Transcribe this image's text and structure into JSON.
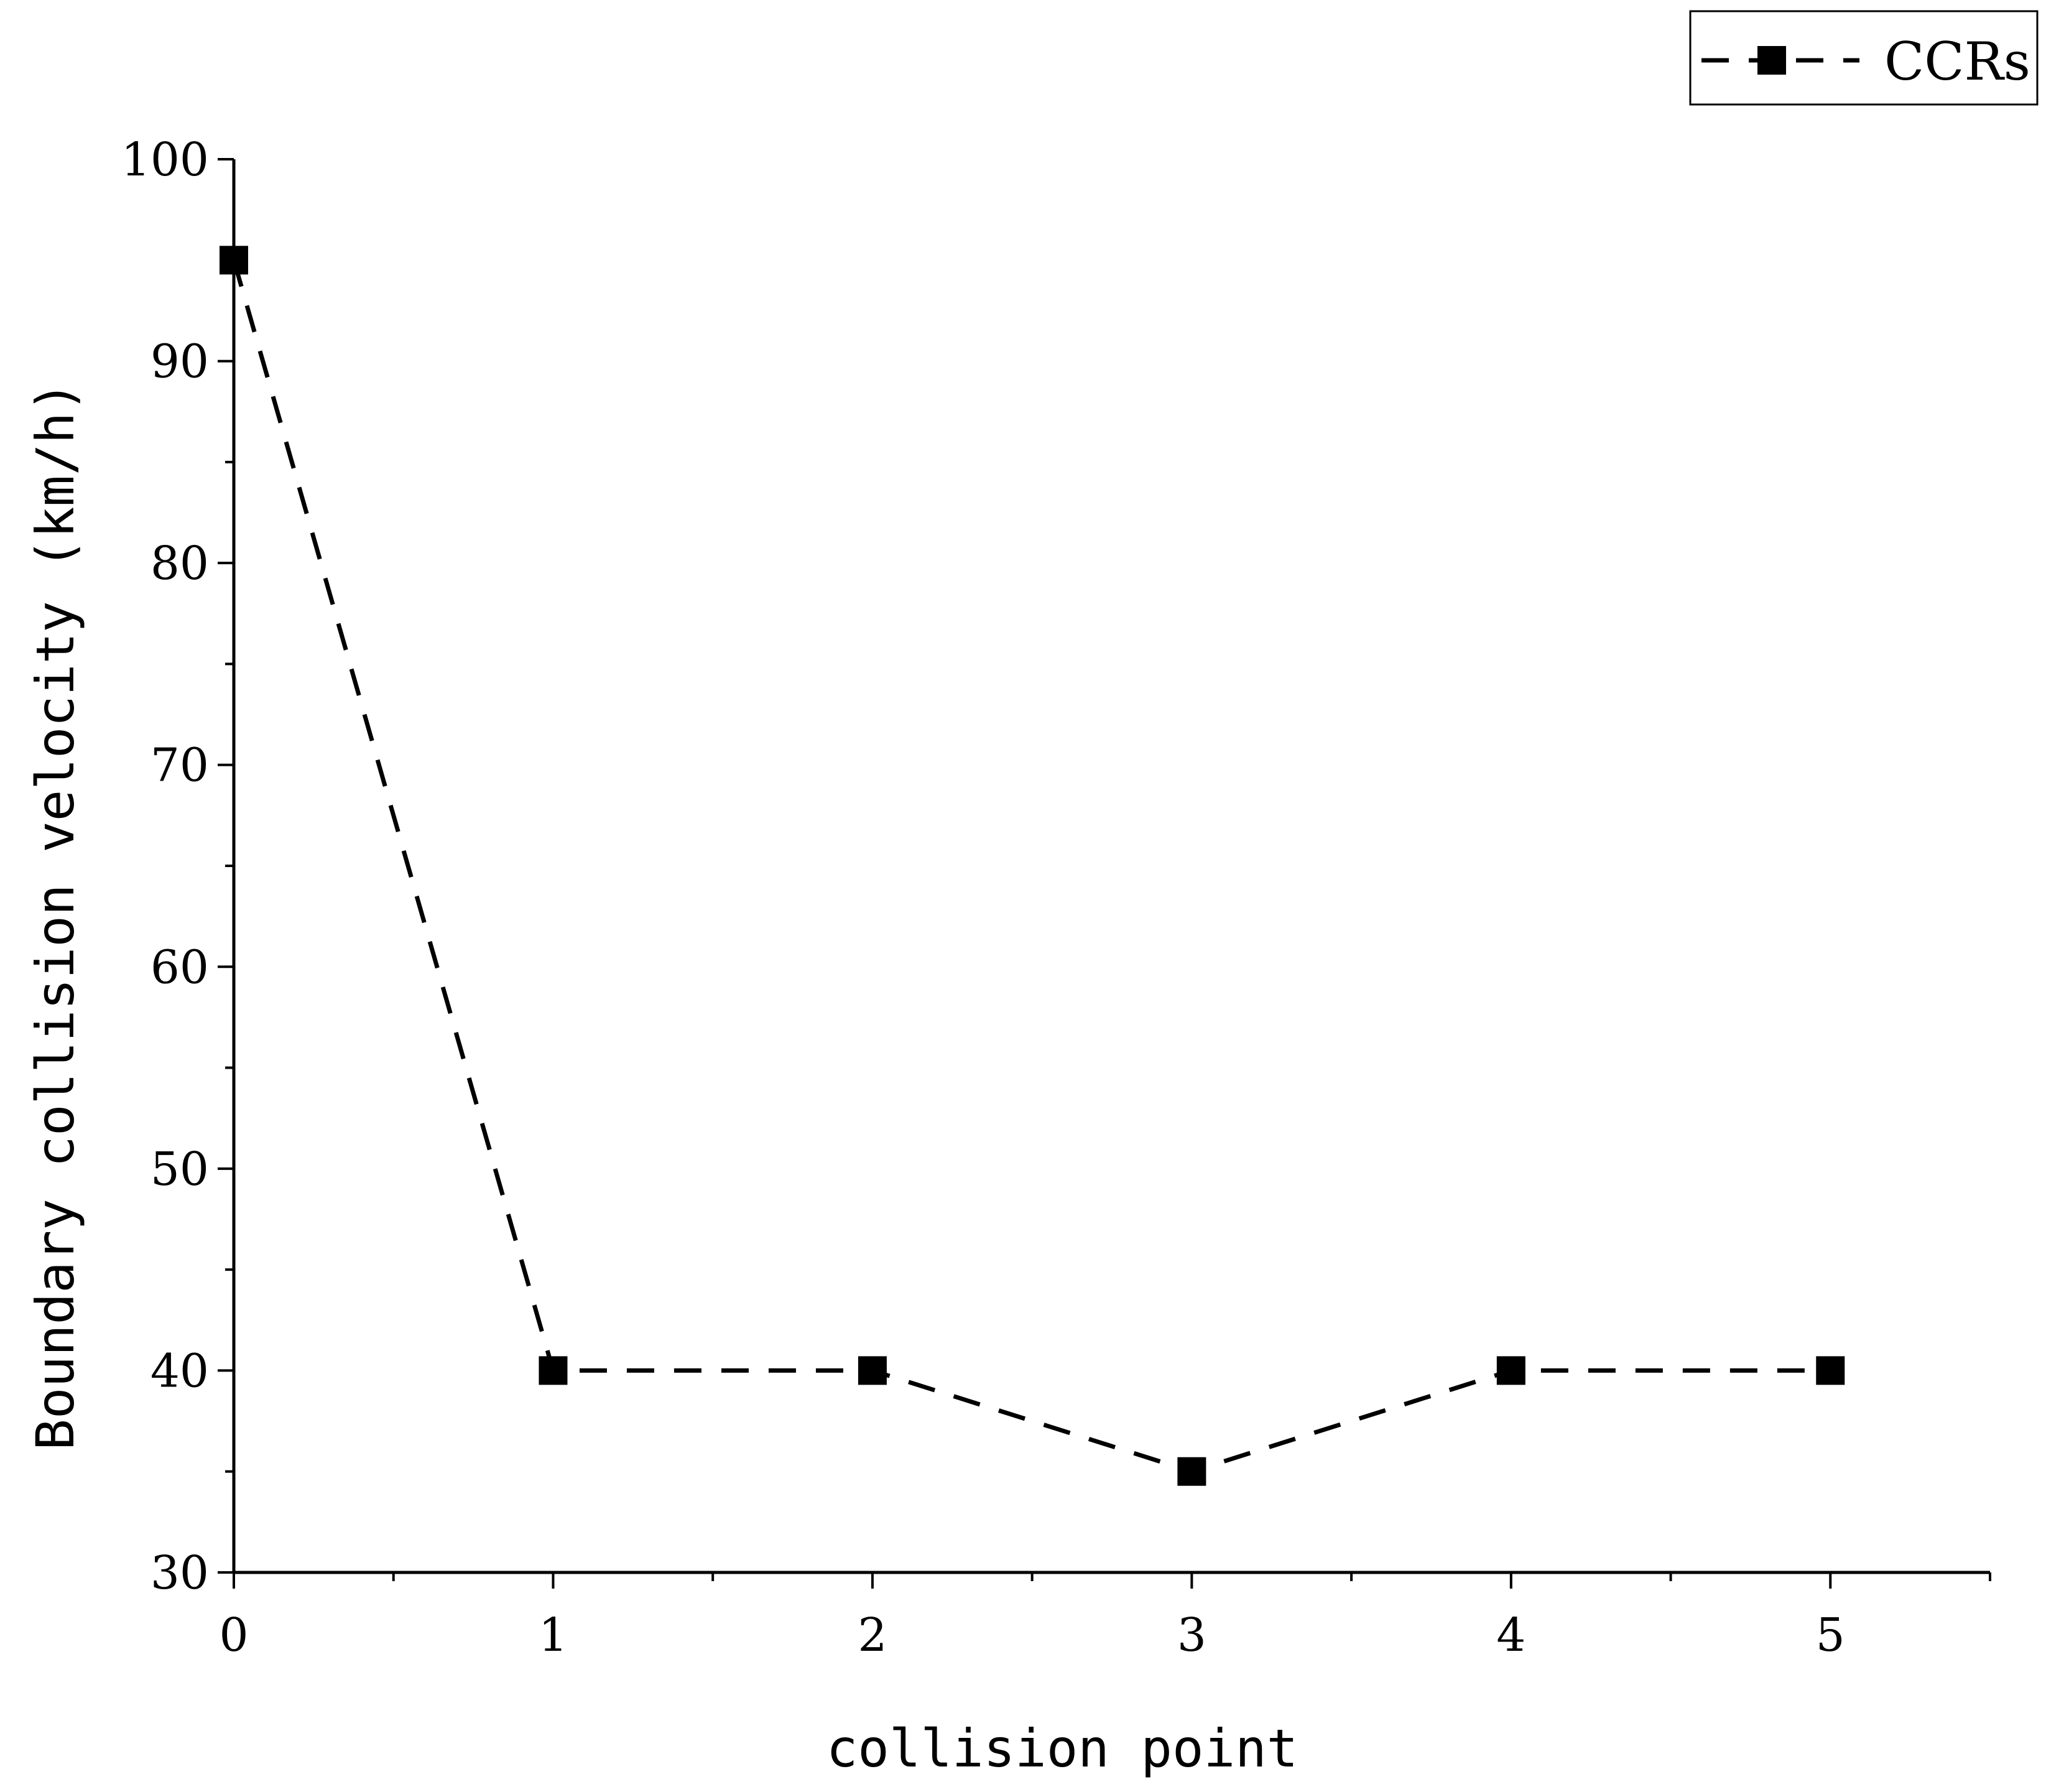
{
  "chart_data": {
    "type": "line",
    "xlabel": "collision point",
    "ylabel": "Boundary collision velocity (km/h)",
    "xlim": [
      0,
      5.5
    ],
    "ylim": [
      30,
      100
    ],
    "x_ticks": [
      0,
      1,
      2,
      3,
      4,
      5
    ],
    "y_ticks": [
      30,
      40,
      50,
      60,
      70,
      80,
      90,
      100
    ],
    "grid": false,
    "legend_position": "top-right",
    "series": [
      {
        "name": "CCRs",
        "line_style": "dashed",
        "marker": "square",
        "color": "#000000",
        "x": [
          0,
          1,
          2,
          3,
          4,
          5
        ],
        "y": [
          95,
          40,
          40,
          35,
          40,
          40
        ]
      }
    ]
  }
}
